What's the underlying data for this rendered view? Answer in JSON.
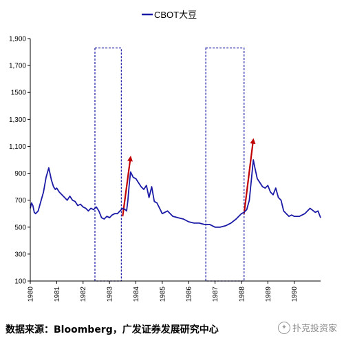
{
  "chart_data": {
    "type": "line",
    "legend": {
      "label": "CBOT大豆",
      "position": "top-center",
      "color": "#1a1aa6"
    },
    "x_axis": {
      "range": [
        1980.0,
        1991.0
      ],
      "tick_labels": [
        "1980",
        "1981",
        "1982",
        "1983",
        "1984",
        "1985",
        "1986",
        "1987",
        "1988",
        "1989",
        "1990"
      ],
      "tick_values": [
        1980,
        1981,
        1982,
        1983,
        1984,
        1985,
        1986,
        1987,
        1988,
        1989,
        1990
      ]
    },
    "y_axis": {
      "range": [
        100,
        1900
      ],
      "tick_labels": [
        "100",
        "300",
        "500",
        "700",
        "900",
        "1,100",
        "1,300",
        "1500",
        "1,700",
        "1,900"
      ],
      "tick_values": [
        100,
        300,
        500,
        700,
        900,
        1100,
        1300,
        1500,
        1700,
        1900
      ]
    },
    "grid": false,
    "series": [
      {
        "name": "CBOT大豆",
        "color": "#1a1aa6",
        "x": [
          1980.0,
          1980.05,
          1980.1,
          1980.15,
          1980.2,
          1980.3,
          1980.4,
          1980.5,
          1980.6,
          1980.7,
          1980.8,
          1980.88,
          1980.95,
          1981.0,
          1981.1,
          1981.2,
          1981.3,
          1981.4,
          1981.5,
          1981.6,
          1981.7,
          1981.8,
          1981.9,
          1982.0,
          1982.1,
          1982.2,
          1982.3,
          1982.4,
          1982.5,
          1982.6,
          1982.7,
          1982.8,
          1982.9,
          1983.0,
          1983.1,
          1983.2,
          1983.3,
          1983.4,
          1983.5,
          1983.6,
          1983.65,
          1983.7,
          1983.75,
          1983.8,
          1983.9,
          1984.0,
          1984.1,
          1984.2,
          1984.3,
          1984.4,
          1984.5,
          1984.6,
          1984.7,
          1984.8,
          1984.9,
          1985.0,
          1985.2,
          1985.4,
          1985.6,
          1985.8,
          1986.0,
          1986.2,
          1986.4,
          1986.6,
          1986.8,
          1987.0,
          1987.2,
          1987.4,
          1987.6,
          1987.8,
          1988.0,
          1988.1,
          1988.2,
          1988.3,
          1988.4,
          1988.45,
          1988.5,
          1988.6,
          1988.7,
          1988.8,
          1988.9,
          1989.0,
          1989.1,
          1989.2,
          1989.3,
          1989.4,
          1989.5,
          1989.6,
          1989.7,
          1989.8,
          1989.9,
          1990.0,
          1990.2,
          1990.4,
          1990.6,
          1990.8,
          1990.9,
          1991.0
        ],
        "values": [
          640,
          680,
          660,
          610,
          600,
          620,
          690,
          760,
          870,
          940,
          850,
          800,
          780,
          790,
          760,
          740,
          720,
          700,
          730,
          700,
          690,
          660,
          670,
          650,
          640,
          620,
          640,
          630,
          650,
          620,
          570,
          560,
          580,
          570,
          590,
          600,
          600,
          620,
          640,
          630,
          620,
          700,
          820,
          910,
          870,
          860,
          830,
          800,
          780,
          810,
          720,
          800,
          690,
          680,
          640,
          600,
          620,
          580,
          570,
          560,
          540,
          530,
          530,
          520,
          520,
          500,
          500,
          510,
          530,
          560,
          600,
          610,
          630,
          700,
          900,
          1000,
          950,
          860,
          830,
          800,
          790,
          810,
          760,
          740,
          790,
          720,
          700,
          620,
          600,
          580,
          590,
          580,
          580,
          600,
          640,
          610,
          620,
          570
        ]
      }
    ],
    "annotations": [
      {
        "type": "dashed-box",
        "x_range": [
          1982.45,
          1983.45
        ],
        "y_range": [
          100,
          1830
        ],
        "color": "#1a1aa6"
      },
      {
        "type": "dashed-box",
        "x_range": [
          1986.65,
          1988.1
        ],
        "y_range": [
          100,
          1830
        ],
        "color": "#1a1aa6"
      },
      {
        "type": "arrow",
        "from": [
          1983.5,
          580
        ],
        "to": [
          1983.8,
          1020
        ],
        "color": "#c00000"
      },
      {
        "type": "arrow",
        "from": [
          1988.1,
          600
        ],
        "to": [
          1988.45,
          1150
        ],
        "color": "#c00000"
      }
    ]
  },
  "footer": {
    "source": "数据来源：Bloomberg，广发证券发展研究中心",
    "watermark": "扑克投资家",
    "watermark_icon": "wechat-icon"
  }
}
